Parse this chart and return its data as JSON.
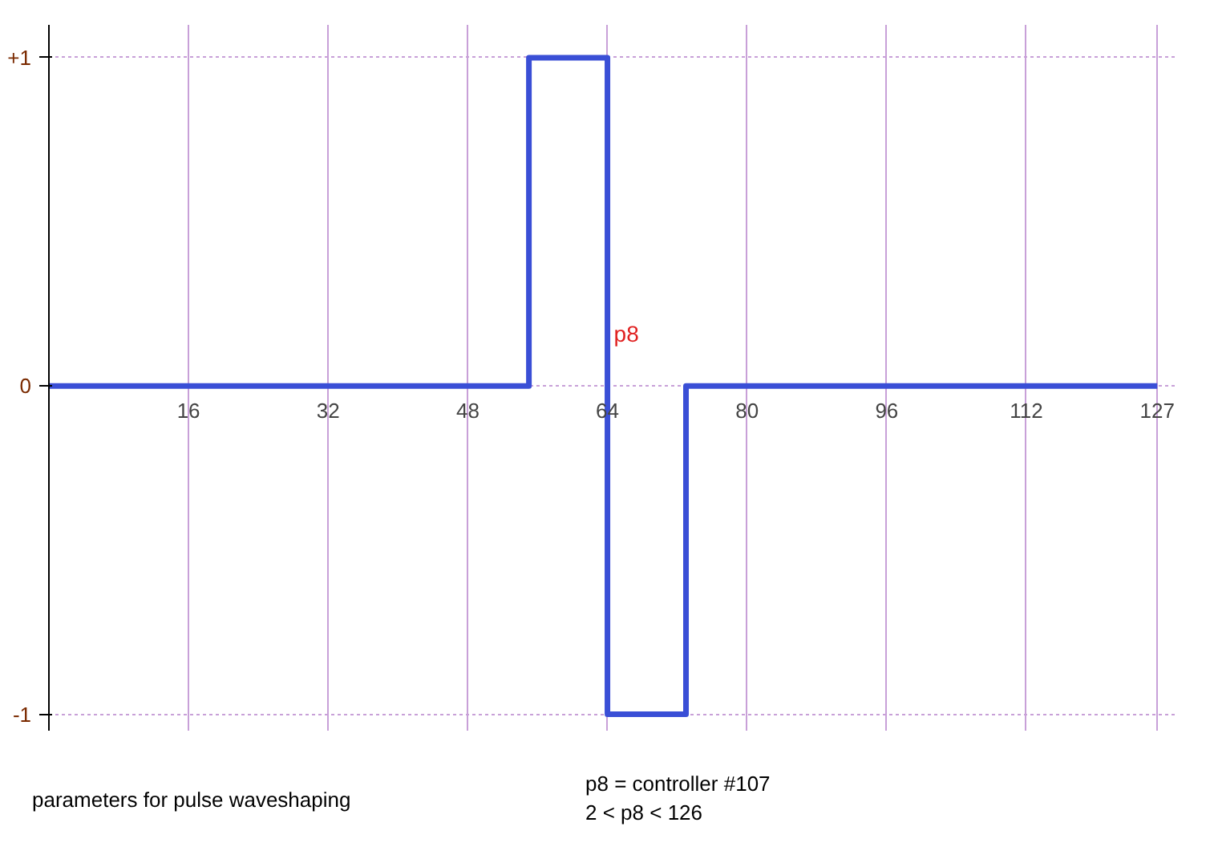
{
  "chart_data": {
    "type": "line",
    "x": [
      0,
      55,
      55,
      64,
      64,
      73,
      73,
      127
    ],
    "series": [
      {
        "color": "#3a4fd6",
        "values": [
          0,
          0,
          1,
          1,
          -1,
          -1,
          0,
          0
        ]
      }
    ],
    "xlim": [
      0,
      129
    ],
    "xticks": [
      16,
      32,
      48,
      64,
      80,
      96,
      112,
      127
    ],
    "ylim": [
      -1.05,
      1.1
    ],
    "yticks": [
      {
        "value": -1,
        "label": "-1"
      },
      0,
      {
        "value": 1,
        "label": "+1"
      }
    ],
    "grid": true,
    "marker": "none",
    "line_style": "solid",
    "annotations": [
      {
        "text": "p8",
        "x": 64,
        "y": 0.12
      },
      "parameters for pulse waveshaping",
      "p8 = controller #107",
      "2 < p8 < 126"
    ]
  }
}
